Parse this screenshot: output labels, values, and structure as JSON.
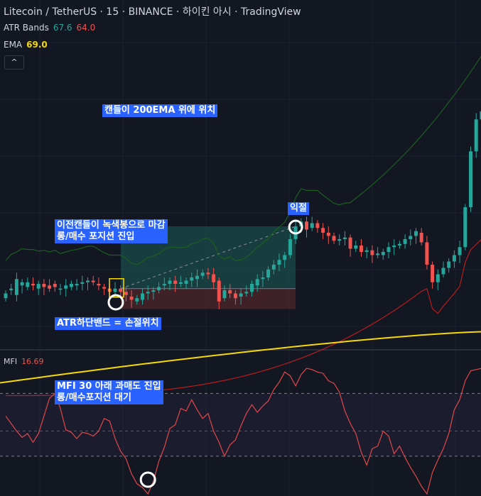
{
  "header": {
    "title": "Litecoin / TetherUS · 15 · BINANCE · 하이킨 아시 · TradingView"
  },
  "indicators": {
    "atr": {
      "label": "ATR Bands",
      "upper": "67.6",
      "lower": "64.0"
    },
    "ema": {
      "label": "EMA",
      "value": "69.0"
    },
    "mfi": {
      "label": "MFI",
      "value": "16.69"
    }
  },
  "toolbar": {
    "collapse_icon": "chevron-up-icon",
    "collapse_symbol": "^"
  },
  "annotations": {
    "above_ema": "캔들이 200EMA 위에 위치",
    "take_profit": "익절",
    "entry": "이전캔들이 녹색봉으로 마감\n롱/매수 포지션 진입",
    "stop_loss": "ATR하단밴드 = 손절위치",
    "mfi_entry": "MFI 30 아래 과매도 진입\n롱/매수포지션 대기"
  },
  "colors": {
    "background": "#131722",
    "bull": "#26a69a",
    "bear": "#ef5350",
    "ema": "#f5d90a",
    "atr_upper": "#1b5e20",
    "atr_lower": "#b71c1c",
    "mfi_line": "#e04848",
    "annotation_bg": "#2962ff",
    "highlight_box": "#f5d90a",
    "profit_zone": "#1e5d57",
    "loss_zone": "#5e2a2c"
  },
  "chart_data": {
    "type": "candlestick",
    "panes": [
      "price",
      "mfi"
    ],
    "price": {
      "candles": [
        [
          -17,
          -14
        ],
        [
          -12,
          -11
        ],
        [
          -15,
          -5
        ],
        [
          -9,
          -7
        ],
        [
          -10,
          -7
        ],
        [
          -8,
          -9
        ],
        [
          -11,
          -8
        ],
        [
          -8,
          -10
        ],
        [
          -9,
          -11
        ],
        [
          -8,
          -10
        ],
        [
          -11,
          -11
        ],
        [
          -11,
          -9
        ],
        [
          -10,
          -8
        ],
        [
          -9,
          -8
        ],
        [
          -8,
          -7
        ],
        [
          -7,
          -6
        ],
        [
          -6,
          -7
        ],
        [
          -8,
          -9
        ],
        [
          -10,
          -11
        ],
        [
          -11,
          -13
        ],
        [
          -13,
          -11
        ],
        [
          -11,
          -13
        ],
        [
          -13,
          -15
        ],
        [
          -16,
          -18
        ],
        [
          -19,
          -17
        ],
        [
          -18,
          -14
        ],
        [
          -14,
          -13
        ],
        [
          -13,
          -12
        ],
        [
          -12,
          -10
        ],
        [
          -9,
          -8
        ],
        [
          -8,
          -6
        ],
        [
          -6,
          -8
        ],
        [
          -8,
          -7
        ],
        [
          -8,
          -6
        ],
        [
          -6,
          -4
        ],
        [
          -5,
          -3
        ],
        [
          -3,
          -1
        ],
        [
          -1,
          -2
        ],
        [
          -2,
          -7
        ],
        [
          -6,
          -19
        ],
        [
          -17,
          -12
        ],
        [
          -12,
          -14
        ],
        [
          -14,
          -17
        ],
        [
          -16,
          -14
        ],
        [
          -14,
          -13
        ],
        [
          -13,
          -8
        ],
        [
          -9,
          -5
        ],
        [
          -5,
          -4
        ],
        [
          -4,
          1
        ],
        [
          1,
          4
        ],
        [
          4,
          7
        ],
        [
          7,
          10
        ],
        [
          10,
          20
        ],
        [
          20,
          28
        ],
        [
          28,
          31
        ],
        [
          31,
          26
        ],
        [
          27,
          30
        ],
        [
          30,
          27
        ],
        [
          27,
          24
        ],
        [
          24,
          22
        ],
        [
          22,
          19
        ],
        [
          19,
          20
        ],
        [
          20,
          21
        ],
        [
          21,
          14
        ],
        [
          14,
          16
        ],
        [
          16,
          12
        ],
        [
          12,
          13
        ],
        [
          13,
          10
        ],
        [
          10,
          11
        ],
        [
          10,
          12
        ],
        [
          12,
          15
        ],
        [
          15,
          16
        ],
        [
          16,
          17
        ],
        [
          17,
          20
        ],
        [
          20,
          22
        ],
        [
          22,
          25
        ],
        [
          24,
          18
        ],
        [
          18,
          4
        ],
        [
          4,
          -7
        ],
        [
          -7,
          -2
        ],
        [
          -2,
          2
        ],
        [
          2,
          6
        ],
        [
          6,
          10
        ],
        [
          10,
          15
        ],
        [
          15,
          40
        ],
        [
          40,
          75
        ],
        [
          75,
          95
        ],
        [
          95,
          100
        ]
      ],
      "ema_200": [
        -70,
        -38
      ],
      "atr_upper_band_range": [
        -8,
        135
      ],
      "atr_lower_band_range": [
        -78,
        20
      ],
      "entry_candle_index": 20,
      "take_profit_candle_index": 53,
      "stop_loss_candle_index": 20
    },
    "mfi": {
      "values": [
        62,
        56,
        50,
        45,
        48,
        41,
        48,
        62,
        76,
        80,
        68,
        51,
        49,
        44,
        49,
        48,
        46,
        50,
        60,
        58,
        44,
        34,
        28,
        16,
        8,
        5,
        0,
        10,
        26,
        37,
        52,
        55,
        68,
        66,
        75,
        67,
        60,
        64,
        50,
        41,
        30,
        39,
        43,
        54,
        64,
        71,
        65,
        70,
        74,
        83,
        89,
        97,
        94,
        86,
        95,
        100,
        99,
        97,
        96,
        90,
        88,
        81,
        66,
        56,
        48,
        33,
        23,
        36,
        38,
        50,
        46,
        32,
        38,
        29,
        21,
        14,
        6,
        0,
        17,
        27,
        36,
        48,
        67,
        75,
        90,
        98,
        99,
        100
      ],
      "overbought": 80,
      "midline": 50,
      "oversold": 30,
      "marked_index": 26
    }
  }
}
